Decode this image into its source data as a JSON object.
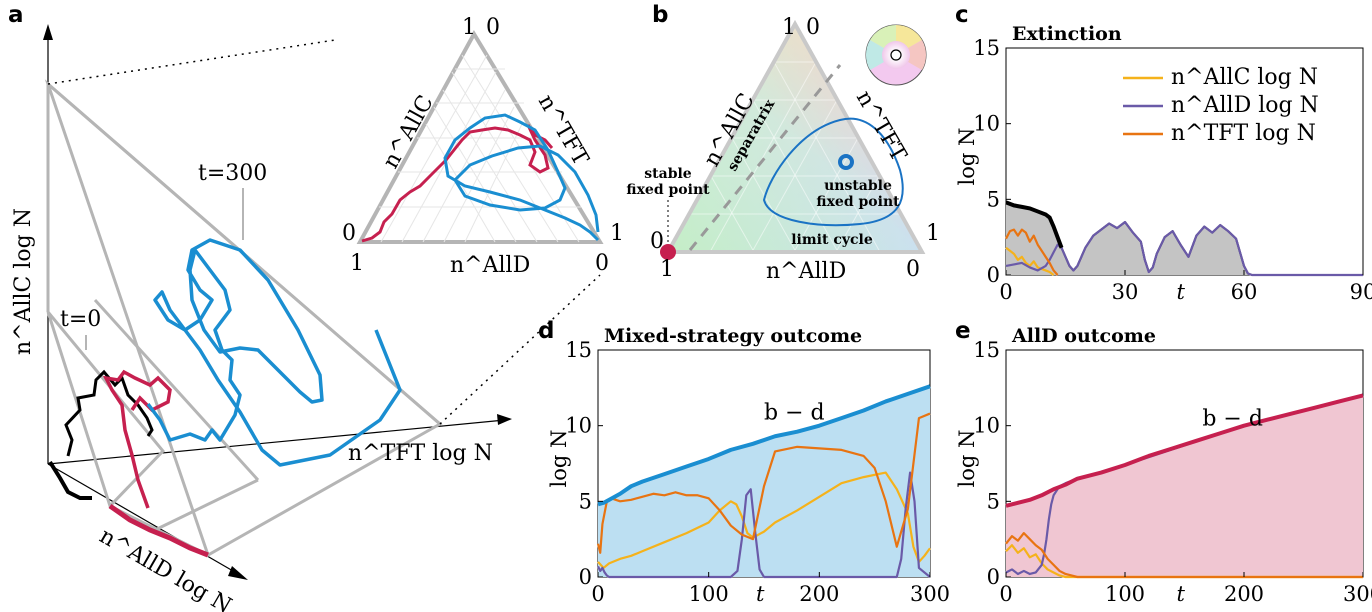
{
  "panels": {
    "a": "a",
    "b": "b",
    "c": "c",
    "d": "d",
    "e": "e"
  },
  "panel_a": {
    "t_start": "t=0",
    "t_end": "t=300",
    "axis_allc": "n^AllC log N",
    "axis_alld": "n^AllD log N",
    "axis_tft": "n^TFT log N",
    "inset": {
      "axis_allc": "n^AllC",
      "axis_tft": "n^TFT",
      "axis_alld": "n^AllD",
      "corner_top_left": "1",
      "corner_top_right": "0",
      "corner_left_top": "0",
      "corner_left_bottom": "1",
      "corner_right_top": "1",
      "corner_right_bottom": "0"
    }
  },
  "panel_b": {
    "axis_allc": "n^AllC",
    "axis_tft": "n^TFT",
    "axis_alld": "n^AllD",
    "separatrix": "separatrix",
    "stable": [
      "stable",
      "fixed point"
    ],
    "unstable": [
      "unstable",
      "fixed point"
    ],
    "limit_cycle": "limit cycle",
    "corner_top_left": "1",
    "corner_top_right": "0",
    "corner_left_top": "0",
    "corner_left_bottom": "1",
    "corner_right_top": "1",
    "corner_right_bottom": "0"
  },
  "colors": {
    "allc": "#f5b21b",
    "alld": "#6a5aa8",
    "tft": "#e87412",
    "total_mixed": "#1a8ed1",
    "total_alld": "#c6204f",
    "fill_mixed": "#bcdff2",
    "fill_alld": "#f0c6d2",
    "fill_extinct": "#c4c4c4",
    "gray": "#b5b5b5"
  },
  "chart_data": [
    {
      "id": "c",
      "type": "line",
      "title": "Extinction",
      "xlabel": "t",
      "ylabel": "log N",
      "xlim": [
        0,
        90
      ],
      "ylim": [
        0,
        15
      ],
      "xticks": [
        0,
        30,
        60,
        90
      ],
      "yticks": [
        0,
        5,
        10,
        15
      ],
      "legend": [
        "n^AllC log N",
        "n^AllD log N",
        "n^TFT log N"
      ],
      "legend_position": "top-right",
      "series": [
        {
          "name": "total",
          "x": [
            0,
            2,
            4,
            6,
            8,
            10,
            11,
            12,
            13,
            14,
            15,
            16,
            17,
            18,
            19,
            20,
            22,
            24,
            26,
            28,
            30,
            32,
            34,
            35,
            36,
            37,
            38,
            40,
            42,
            44,
            46,
            48,
            50,
            52,
            54,
            56,
            58,
            59,
            60,
            61,
            62,
            90
          ],
          "values": [
            4.8,
            4.6,
            4.5,
            4.4,
            4.2,
            4.0,
            3.8,
            3.2,
            2.5,
            1.8,
            1.2,
            0.6,
            0.3,
            0.6,
            1.2,
            1.8,
            2.6,
            3.0,
            3.4,
            3.1,
            3.5,
            2.8,
            2.2,
            1.0,
            0.2,
            0.5,
            1.4,
            2.5,
            2.9,
            2.0,
            1.2,
            2.6,
            3.2,
            2.8,
            3.3,
            2.9,
            2.4,
            1.5,
            0.6,
            0.1,
            0,
            0
          ]
        },
        {
          "name": "n^AllC log N",
          "x": [
            0,
            1,
            2,
            3,
            4,
            5,
            6,
            7,
            8,
            9,
            10,
            11,
            12
          ],
          "values": [
            1.8,
            1.6,
            1.4,
            1.0,
            1.2,
            0.8,
            0.6,
            0.9,
            0.5,
            0.4,
            0.3,
            0.2,
            0
          ]
        },
        {
          "name": "n^AllD log N",
          "x": [
            0,
            2,
            4,
            6,
            8,
            10,
            11,
            12,
            13,
            14,
            15,
            16,
            17,
            18,
            19,
            20,
            22,
            24,
            26,
            28,
            30,
            32,
            34,
            35,
            36,
            37,
            38,
            40,
            42,
            44,
            46,
            48,
            50,
            52,
            54,
            56,
            58,
            59,
            60,
            61,
            62,
            90
          ],
          "values": [
            0.6,
            0.7,
            0.8,
            0.5,
            0.3,
            0.6,
            1.0,
            1.5,
            2.0,
            1.8,
            1.2,
            0.6,
            0.3,
            0.6,
            1.2,
            1.8,
            2.6,
            3.0,
            3.4,
            3.1,
            3.5,
            2.8,
            2.2,
            1.0,
            0.2,
            0.5,
            1.4,
            2.5,
            2.9,
            2.0,
            1.2,
            2.6,
            3.2,
            2.8,
            3.3,
            2.9,
            2.4,
            1.5,
            0.6,
            0.1,
            0,
            0
          ]
        },
        {
          "name": "n^TFT log N",
          "x": [
            0,
            1,
            2,
            3,
            4,
            5,
            6,
            7,
            8,
            9,
            10,
            11,
            12,
            13
          ],
          "values": [
            2.4,
            2.9,
            3.0,
            2.6,
            3.0,
            2.8,
            2.2,
            2.6,
            2.0,
            1.6,
            1.2,
            0.8,
            0.3,
            0
          ]
        }
      ]
    },
    {
      "id": "d",
      "type": "area",
      "title": "Mixed-strategy outcome",
      "xlabel": "t",
      "ylabel": "log N",
      "xlim": [
        0,
        300
      ],
      "ylim": [
        0,
        15
      ],
      "xticks": [
        0,
        100,
        200,
        300
      ],
      "yticks": [
        0,
        5,
        10,
        15
      ],
      "annotation": "b − d",
      "series": [
        {
          "name": "total",
          "x": [
            0,
            5,
            10,
            20,
            30,
            40,
            60,
            80,
            100,
            120,
            140,
            160,
            180,
            200,
            220,
            240,
            260,
            280,
            300
          ],
          "values": [
            4.8,
            4.9,
            5.1,
            5.5,
            6.0,
            6.3,
            6.8,
            7.3,
            7.8,
            8.4,
            8.8,
            9.3,
            9.6,
            10.0,
            10.5,
            11.0,
            11.6,
            12.1,
            12.6
          ]
        },
        {
          "name": "n^AllC log N",
          "x": [
            0,
            5,
            10,
            20,
            30,
            40,
            60,
            80,
            100,
            110,
            120,
            125,
            130,
            135,
            140,
            150,
            160,
            180,
            200,
            220,
            240,
            260,
            270,
            280,
            285,
            290,
            295,
            300
          ],
          "values": [
            1.0,
            0.6,
            0.9,
            1.2,
            1.4,
            1.7,
            2.3,
            2.9,
            3.6,
            4.4,
            5.0,
            4.8,
            4.0,
            2.9,
            2.6,
            3.0,
            3.6,
            4.4,
            5.3,
            6.2,
            6.6,
            6.9,
            5.8,
            4.2,
            2.0,
            1.0,
            1.4,
            1.9
          ]
        },
        {
          "name": "n^AllD log N",
          "x": [
            0,
            2,
            4,
            6,
            8,
            10,
            20,
            100,
            120,
            126,
            130,
            134,
            138,
            142,
            146,
            150,
            160,
            260,
            270,
            274,
            278,
            282,
            286,
            290,
            300
          ],
          "values": [
            0.7,
            0.4,
            0.6,
            0.3,
            0.1,
            0,
            0,
            0,
            0,
            0.4,
            2.5,
            5.4,
            5.8,
            3.0,
            0.5,
            0,
            0,
            0,
            0,
            1.2,
            4.5,
            6.9,
            5.0,
            0.6,
            0
          ]
        },
        {
          "name": "n^TFT log N",
          "x": [
            0,
            2,
            4,
            8,
            12,
            20,
            30,
            40,
            50,
            60,
            70,
            80,
            90,
            100,
            110,
            120,
            130,
            140,
            150,
            160,
            180,
            200,
            220,
            240,
            250,
            260,
            270,
            280,
            290,
            300
          ],
          "values": [
            2.2,
            1.6,
            3.5,
            5.0,
            5.2,
            5.0,
            5.1,
            5.3,
            5.5,
            5.4,
            5.6,
            5.4,
            5.4,
            5.2,
            4.4,
            3.4,
            2.8,
            2.5,
            6.0,
            8.3,
            8.6,
            8.5,
            8.4,
            8.0,
            7.2,
            5.0,
            2.0,
            4.5,
            10.5,
            10.8
          ]
        }
      ]
    },
    {
      "id": "e",
      "type": "area",
      "title": "AllD outcome",
      "xlabel": "t",
      "ylabel": "log N",
      "xlim": [
        0,
        300
      ],
      "ylim": [
        0,
        15
      ],
      "xticks": [
        0,
        100,
        200,
        300
      ],
      "yticks": [
        0,
        5,
        10,
        15
      ],
      "annotation": "b − d",
      "series": [
        {
          "name": "total",
          "x": [
            0,
            5,
            10,
            20,
            30,
            40,
            50,
            60,
            80,
            100,
            120,
            140,
            160,
            180,
            200,
            220,
            240,
            260,
            280,
            300
          ],
          "values": [
            4.7,
            4.8,
            4.9,
            5.1,
            5.4,
            5.8,
            6.1,
            6.5,
            6.9,
            7.4,
            8.0,
            8.5,
            9.0,
            9.5,
            10.0,
            10.4,
            10.8,
            11.2,
            11.6,
            12.0
          ]
        },
        {
          "name": "n^AllC log N",
          "x": [
            0,
            5,
            10,
            15,
            20,
            25,
            30,
            35,
            40,
            45,
            50,
            60,
            300
          ],
          "values": [
            1.7,
            2.1,
            1.6,
            1.9,
            1.3,
            1.5,
            0.9,
            0.5,
            0.3,
            0.1,
            0,
            0,
            0
          ]
        },
        {
          "name": "n^AllD log N",
          "x": [
            0,
            5,
            10,
            15,
            20,
            25,
            30,
            32,
            34,
            36,
            38,
            40,
            45,
            50,
            60,
            80,
            100,
            150,
            200,
            250,
            300
          ],
          "values": [
            0.3,
            0.5,
            0.2,
            0.4,
            0.2,
            0.3,
            0.8,
            1.5,
            2.5,
            3.8,
            4.8,
            5.4,
            6.0,
            6.2,
            6.5,
            6.9,
            7.4,
            8.7,
            10.0,
            11.0,
            12.0
          ]
        },
        {
          "name": "n^TFT log N",
          "x": [
            0,
            5,
            10,
            15,
            20,
            25,
            30,
            35,
            40,
            45,
            50,
            55,
            60,
            70,
            300
          ],
          "values": [
            2.2,
            2.7,
            2.4,
            2.9,
            2.5,
            2.1,
            1.8,
            1.2,
            0.8,
            0.4,
            0.2,
            0.1,
            0,
            0,
            0
          ]
        }
      ]
    }
  ]
}
